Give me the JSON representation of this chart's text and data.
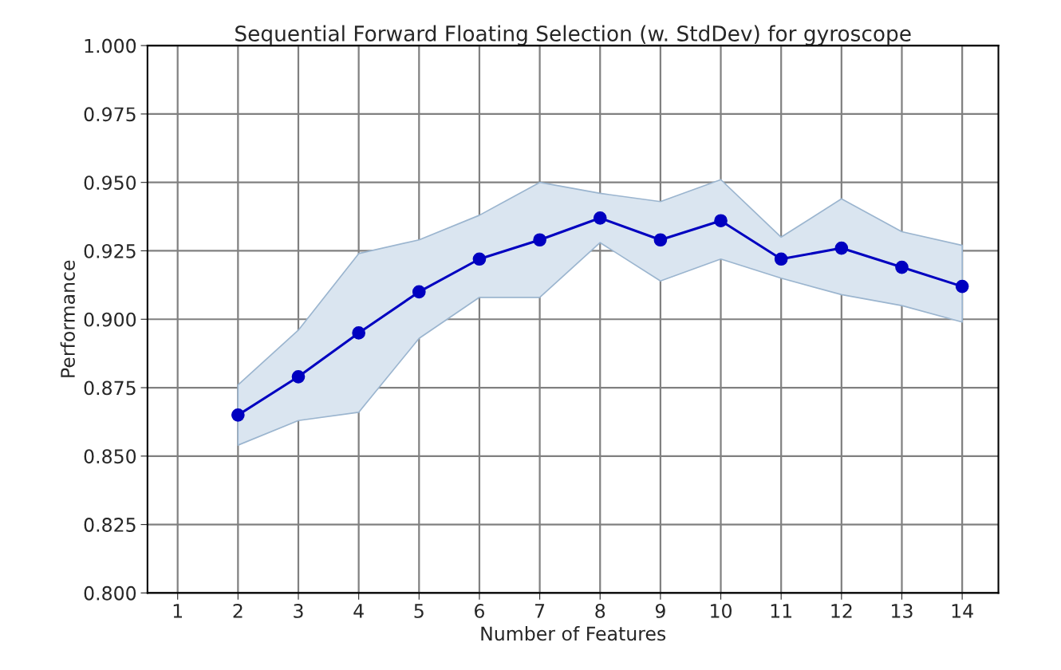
{
  "chart_data": {
    "type": "line",
    "title": "Sequential Forward Floating Selection (w. StdDev) for gyroscope",
    "xlabel": "Number of Features",
    "ylabel": "Performance",
    "x": [
      2,
      3,
      4,
      5,
      6,
      7,
      8,
      9,
      10,
      11,
      12,
      13,
      14
    ],
    "series": [
      {
        "color": "#0000c0",
        "values": [
          0.865,
          0.879,
          0.895,
          0.91,
          0.922,
          0.929,
          0.937,
          0.929,
          0.936,
          0.922,
          0.926,
          0.919,
          0.912
        ],
        "lower": [
          0.854,
          0.863,
          0.866,
          0.893,
          0.908,
          0.908,
          0.928,
          0.914,
          0.922,
          0.915,
          0.909,
          0.905,
          0.899
        ],
        "upper": [
          0.876,
          0.896,
          0.924,
          0.929,
          0.938,
          0.95,
          0.946,
          0.943,
          0.951,
          0.93,
          0.944,
          0.932,
          0.927
        ]
      }
    ],
    "xlim": [
      0.5,
      14.6
    ],
    "xticks": [
      1,
      2,
      3,
      4,
      5,
      6,
      7,
      8,
      9,
      10,
      11,
      12,
      13,
      14
    ],
    "ylim": [
      0.8,
      1.0
    ],
    "yticks": [
      {
        "value": 0.8,
        "label": "0.800"
      },
      {
        "value": 0.825,
        "label": "0.825"
      },
      {
        "value": 0.85,
        "label": "0.850"
      },
      {
        "value": 0.875,
        "label": "0.875"
      },
      {
        "value": 0.9,
        "label": "0.900"
      },
      {
        "value": 0.925,
        "label": "0.925"
      },
      {
        "value": 0.95,
        "label": "0.950"
      },
      {
        "value": 0.975,
        "label": "0.975"
      },
      {
        "value": 1.0,
        "label": "1.000"
      }
    ],
    "grid": true,
    "marker": "circle",
    "line_style": "solid"
  }
}
